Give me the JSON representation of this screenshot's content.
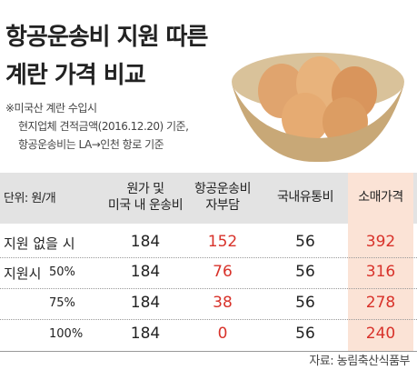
{
  "header": {
    "title": [
      "항공운송비 지원 따른",
      "계란 가격 비교"
    ],
    "notes": [
      "※미국산 계란 수입시",
      "현지업체 견적금액(2016.12.20) 기준,",
      "항공운송비는 LA→인천 항로 기준"
    ]
  },
  "table": {
    "unit": "단위: 원/개",
    "columns": [
      [
        "원가 및",
        "미국 내 운송비"
      ],
      [
        "항공운송비",
        "자부담"
      ],
      [
        "국내유통비"
      ],
      [
        "소매가격"
      ]
    ],
    "rows": [
      [
        "지원 없을 시",
        null,
        "184",
        "152",
        "56",
        "392"
      ],
      [
        "지원시",
        "50%",
        "184",
        "76",
        "56",
        "316"
      ],
      [
        null,
        "75%",
        "184",
        "38",
        "56",
        "278"
      ],
      [
        null,
        "100%",
        "184",
        "0",
        "56",
        "240"
      ]
    ]
  },
  "source": "자료: 농림축산식품부"
}
